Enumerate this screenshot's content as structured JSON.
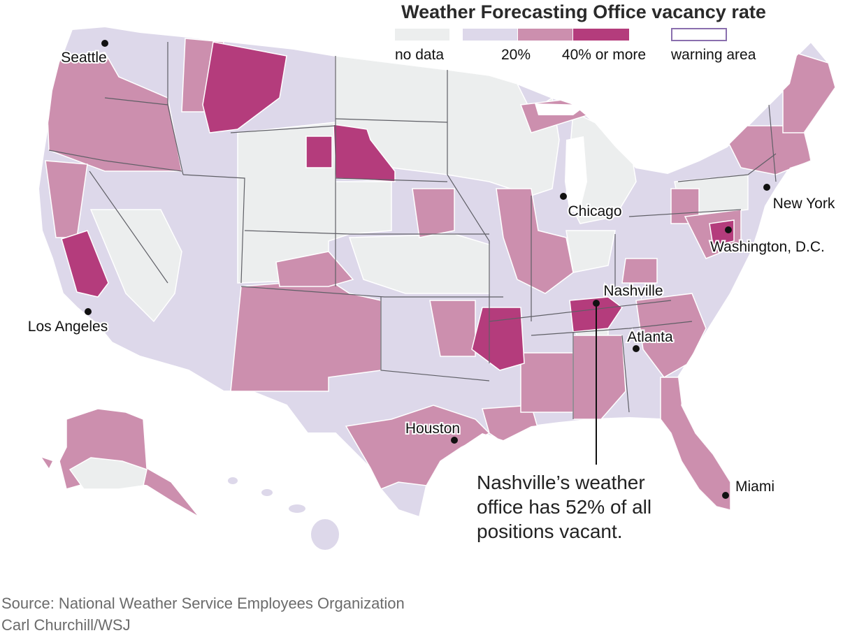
{
  "title": "Weather Forecasting Office vacancy rate",
  "legend": {
    "items": [
      {
        "key": "no-data",
        "label": "no data",
        "color": "#eceeee"
      },
      {
        "key": "low",
        "label": "",
        "color": "#ddd8ea"
      },
      {
        "key": "mid",
        "label": "20%",
        "color": "#cc8fae"
      },
      {
        "key": "high",
        "label": "40% or more",
        "color": "#b43c7c"
      }
    ],
    "warning_area": {
      "label": "warning area",
      "border_color": "#8a6fae"
    }
  },
  "cities": [
    {
      "key": "seattle",
      "name": "Seattle"
    },
    {
      "key": "los-angeles",
      "name": "Los Angeles"
    },
    {
      "key": "chicago",
      "name": "Chicago"
    },
    {
      "key": "new-york",
      "name": "New York"
    },
    {
      "key": "washington",
      "name": "Washington, D.C."
    },
    {
      "key": "nashville",
      "name": "Nashville"
    },
    {
      "key": "atlanta",
      "name": "Atlanta"
    },
    {
      "key": "houston",
      "name": "Houston"
    },
    {
      "key": "miami",
      "name": "Miami"
    }
  ],
  "annotation": {
    "lines": [
      "Nashville’s weather",
      "office has 52% of all",
      "positions vacant."
    ]
  },
  "source": "Source: National Weather Service Employees Organization",
  "credit": "Carl Churchill/WSJ",
  "colors": {
    "no_data": "#eceeee",
    "low": "#ddd8ea",
    "mid": "#cc8fae",
    "high": "#b43c7c",
    "border": "#ffffff",
    "state_border": "#5f5f66"
  }
}
